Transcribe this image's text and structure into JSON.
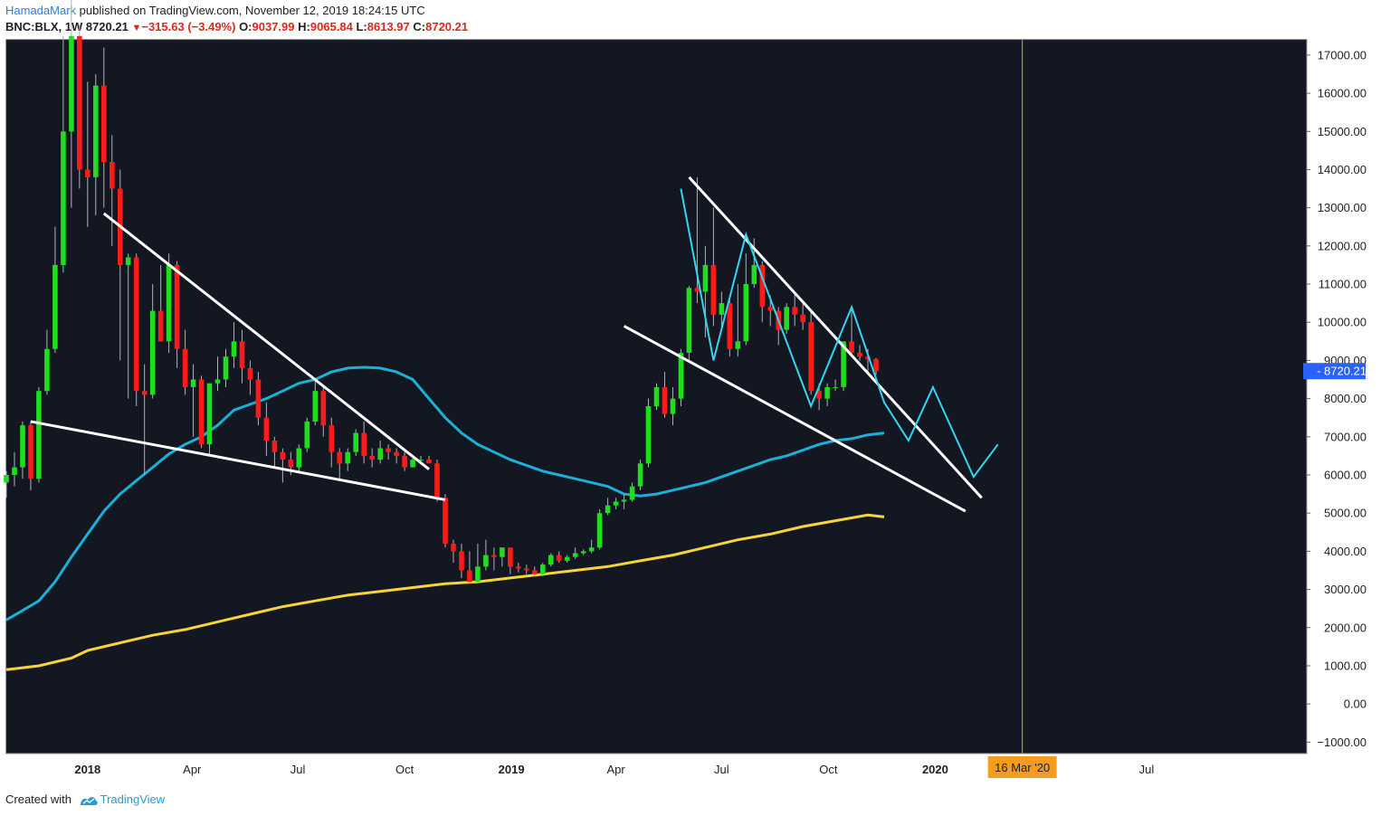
{
  "header": {
    "author": "HamadaMark",
    "published": "published on TradingView.com, November 12, 2019 18:24:15 UTC"
  },
  "ticker": {
    "symbol": "BNC:BLX, 1W",
    "last": "8720.21",
    "change": "−315.63 (−3.49%)",
    "o_label": "O:",
    "o": "9037.99",
    "h_label": "H:",
    "h": "9065.84",
    "l_label": "L:",
    "l": "8613.97",
    "c_label": "C:",
    "c": "8720.21"
  },
  "footer": {
    "created": "Created with",
    "brand": "TradingView"
  },
  "colors": {
    "background": "#131722",
    "up": "#1ede1e",
    "down": "#ff1a1a",
    "ma_fast": "#1ab0d8",
    "ma_slow": "#f7d43a",
    "trendline": "#ffffff",
    "projection": "#33d6f0",
    "vline": "#f59b1e",
    "price_label_bg": "#2962ff"
  },
  "chart_data": {
    "type": "candlestick",
    "timeframe": "1W",
    "ylim": [
      -1300,
      17400
    ],
    "y_ticks": [
      17000,
      16000,
      15000,
      14000,
      13000,
      12000,
      11000,
      10000,
      9000,
      8000,
      7000,
      6000,
      5000,
      4000,
      3000,
      2000,
      1000,
      0,
      -1000
    ],
    "y_tick_labels": [
      "17000.00",
      "16000.00",
      "15000.00",
      "14000.00",
      "13000.00",
      "12000.00",
      "11000.00",
      "10000.00",
      "9000.00",
      "8000.00",
      "7000.00",
      "6000.00",
      "5000.00",
      "4000.00",
      "3000.00",
      "2000.00",
      "1000.00",
      "0.00",
      "−1000.00"
    ],
    "x_axis": {
      "start": "2017-10-23",
      "end": "2020-11-16",
      "ticks": [
        {
          "label": "2018",
          "date": "2018-01-01",
          "bold": true
        },
        {
          "label": "Apr",
          "date": "2018-04-01",
          "bold": false
        },
        {
          "label": "Jul",
          "date": "2018-07-01",
          "bold": false
        },
        {
          "label": "Oct",
          "date": "2018-10-01",
          "bold": false
        },
        {
          "label": "2019",
          "date": "2019-01-01",
          "bold": true
        },
        {
          "label": "Apr",
          "date": "2019-04-01",
          "bold": false
        },
        {
          "label": "Jul",
          "date": "2019-07-01",
          "bold": false
        },
        {
          "label": "Oct",
          "date": "2019-10-01",
          "bold": false
        },
        {
          "label": "2020",
          "date": "2020-01-01",
          "bold": true
        },
        {
          "label": "Jul",
          "date": "2020-07-01",
          "bold": false
        }
      ]
    },
    "candles_first_week": "2017-10-23",
    "candles": [
      [
        5800,
        6100,
        5400,
        6000
      ],
      [
        6000,
        6600,
        5700,
        6200
      ],
      [
        6200,
        7400,
        5900,
        7300
      ],
      [
        7300,
        7400,
        5600,
        5900
      ],
      [
        5900,
        8300,
        5800,
        8200
      ],
      [
        8200,
        9800,
        8100,
        9300
      ],
      [
        9300,
        12500,
        9200,
        11500
      ],
      [
        11500,
        17500,
        11300,
        15000
      ],
      [
        15000,
        19800,
        13000,
        17500
      ],
      [
        17500,
        17800,
        13500,
        14000
      ],
      [
        14000,
        16300,
        12500,
        13800
      ],
      [
        13800,
        16500,
        12800,
        16200
      ],
      [
        16200,
        17200,
        13000,
        14200
      ],
      [
        14200,
        14900,
        12000,
        13500
      ],
      [
        13500,
        14000,
        9000,
        11500
      ],
      [
        11500,
        11800,
        8000,
        11700
      ],
      [
        11700,
        11800,
        7800,
        8200
      ],
      [
        8200,
        8900,
        6000,
        8100
      ],
      [
        8100,
        11000,
        8000,
        10300
      ],
      [
        10300,
        11500,
        9500,
        9500
      ],
      [
        9500,
        11800,
        9200,
        11500
      ],
      [
        11500,
        11600,
        8800,
        9300
      ],
      [
        9300,
        9800,
        8100,
        8300
      ],
      [
        8300,
        8900,
        7000,
        8500
      ],
      [
        8500,
        8600,
        6700,
        6800
      ],
      [
        6800,
        8400,
        6500,
        8400
      ],
      [
        8400,
        9100,
        8200,
        8500
      ],
      [
        8500,
        9300,
        8300,
        9100
      ],
      [
        9100,
        10000,
        8800,
        9500
      ],
      [
        9500,
        9800,
        8400,
        8800
      ],
      [
        8800,
        9000,
        8100,
        8500
      ],
      [
        8500,
        8700,
        7300,
        7500
      ],
      [
        7500,
        7900,
        6500,
        6900
      ],
      [
        6900,
        7000,
        6200,
        6600
      ],
      [
        6600,
        6700,
        5800,
        6400
      ],
      [
        6400,
        6600,
        6000,
        6200
      ],
      [
        6200,
        6800,
        6100,
        6700
      ],
      [
        6700,
        7500,
        6600,
        7400
      ],
      [
        7400,
        8500,
        7300,
        8200
      ],
      [
        8200,
        8300,
        7000,
        7300
      ],
      [
        7300,
        7500,
        6200,
        6600
      ],
      [
        6600,
        6700,
        5900,
        6300
      ],
      [
        6300,
        6700,
        6100,
        6600
      ],
      [
        6600,
        7200,
        6500,
        7100
      ],
      [
        7100,
        7400,
        6300,
        6500
      ],
      [
        6500,
        6700,
        6200,
        6400
      ],
      [
        6400,
        6900,
        6300,
        6700
      ],
      [
        6700,
        6800,
        6400,
        6600
      ],
      [
        6600,
        6700,
        6300,
        6500
      ],
      [
        6500,
        6600,
        6100,
        6200
      ],
      [
        6200,
        6500,
        6200,
        6400
      ],
      [
        6400,
        6500,
        6300,
        6400
      ],
      [
        6400,
        6500,
        6300,
        6300
      ],
      [
        6300,
        6400,
        5300,
        5400
      ],
      [
        5400,
        5500,
        4100,
        4200
      ],
      [
        4200,
        4300,
        3700,
        4000
      ],
      [
        4000,
        4200,
        3300,
        3500
      ],
      [
        3500,
        4000,
        3200,
        3200
      ],
      [
        3200,
        4200,
        3200,
        3600
      ],
      [
        3600,
        4300,
        3500,
        3900
      ],
      [
        3900,
        4100,
        3500,
        3850
      ],
      [
        3850,
        4100,
        3600,
        4100
      ],
      [
        4100,
        4100,
        3400,
        3600
      ],
      [
        3600,
        3700,
        3450,
        3550
      ],
      [
        3550,
        3650,
        3400,
        3500
      ],
      [
        3500,
        3600,
        3350,
        3400
      ],
      [
        3400,
        3700,
        3350,
        3650
      ],
      [
        3650,
        3950,
        3600,
        3900
      ],
      [
        3900,
        4000,
        3700,
        3750
      ],
      [
        3750,
        3900,
        3700,
        3850
      ],
      [
        3850,
        4100,
        3800,
        3950
      ],
      [
        3950,
        4050,
        3900,
        4000
      ],
      [
        4000,
        4300,
        3950,
        4100
      ],
      [
        4100,
        5100,
        4050,
        5000
      ],
      [
        5000,
        5400,
        4950,
        5200
      ],
      [
        5200,
        5400,
        5100,
        5300
      ],
      [
        5300,
        5500,
        5100,
        5350
      ],
      [
        5350,
        5800,
        5300,
        5700
      ],
      [
        5700,
        6400,
        5600,
        6300
      ],
      [
        6300,
        8000,
        6200,
        7800
      ],
      [
        7800,
        8400,
        7700,
        8300
      ],
      [
        8300,
        8700,
        7500,
        7600
      ],
      [
        7600,
        8300,
        7300,
        8000
      ],
      [
        8000,
        9300,
        7800,
        9200
      ],
      [
        9200,
        10950,
        9000,
        10900
      ],
      [
        10900,
        13800,
        10500,
        10800
      ],
      [
        10800,
        12000,
        9600,
        11500
      ],
      [
        11500,
        13000,
        9900,
        10200
      ],
      [
        10200,
        10800,
        9800,
        10500
      ],
      [
        10500,
        10700,
        9100,
        9300
      ],
      [
        9300,
        11000,
        9100,
        9500
      ],
      [
        9500,
        11800,
        9400,
        11000
      ],
      [
        11000,
        12200,
        10900,
        11500
      ],
      [
        11500,
        11600,
        10000,
        10400
      ],
      [
        10400,
        10700,
        9900,
        10300
      ],
      [
        10300,
        10400,
        9400,
        9800
      ],
      [
        9800,
        10500,
        9700,
        10400
      ],
      [
        10400,
        10800,
        9900,
        10200
      ],
      [
        10200,
        10500,
        9800,
        10000
      ],
      [
        10000,
        10300,
        8100,
        8200
      ],
      [
        8200,
        8400,
        7700,
        8000
      ],
      [
        8000,
        8400,
        7800,
        8300
      ],
      [
        8300,
        8500,
        8200,
        8300
      ],
      [
        8300,
        9400,
        8200,
        9500
      ],
      [
        9500,
        10400,
        9100,
        9200
      ],
      [
        9200,
        9400,
        9000,
        9100
      ],
      [
        9100,
        9300,
        8700,
        9037
      ],
      [
        9037.99,
        9065.84,
        8613.97,
        8720.21
      ]
    ],
    "ma_fast": [
      [
        0,
        2200
      ],
      [
        2,
        2450
      ],
      [
        4,
        2700
      ],
      [
        6,
        3200
      ],
      [
        8,
        3850
      ],
      [
        10,
        4450
      ],
      [
        12,
        5050
      ],
      [
        14,
        5500
      ],
      [
        16,
        5850
      ],
      [
        18,
        6200
      ],
      [
        20,
        6550
      ],
      [
        22,
        6800
      ],
      [
        24,
        7000
      ],
      [
        26,
        7300
      ],
      [
        28,
        7700
      ],
      [
        30,
        7850
      ],
      [
        32,
        8000
      ],
      [
        34,
        8200
      ],
      [
        36,
        8400
      ],
      [
        38,
        8500
      ],
      [
        40,
        8700
      ],
      [
        42,
        8800
      ],
      [
        44,
        8820
      ],
      [
        46,
        8800
      ],
      [
        48,
        8700
      ],
      [
        50,
        8500
      ],
      [
        52,
        8000
      ],
      [
        54,
        7500
      ],
      [
        56,
        7100
      ],
      [
        58,
        6800
      ],
      [
        60,
        6600
      ],
      [
        62,
        6400
      ],
      [
        64,
        6250
      ],
      [
        66,
        6100
      ],
      [
        68,
        6000
      ],
      [
        70,
        5900
      ],
      [
        72,
        5800
      ],
      [
        74,
        5700
      ],
      [
        76,
        5500
      ],
      [
        78,
        5450
      ],
      [
        80,
        5500
      ],
      [
        82,
        5600
      ],
      [
        84,
        5700
      ],
      [
        86,
        5800
      ],
      [
        88,
        5950
      ],
      [
        90,
        6100
      ],
      [
        92,
        6250
      ],
      [
        94,
        6400
      ],
      [
        96,
        6500
      ],
      [
        98,
        6650
      ],
      [
        100,
        6800
      ],
      [
        102,
        6900
      ],
      [
        104,
        6950
      ],
      [
        106,
        7050
      ],
      [
        108,
        7100
      ]
    ],
    "ma_slow": [
      [
        0,
        900
      ],
      [
        4,
        1000
      ],
      [
        8,
        1200
      ],
      [
        10,
        1400
      ],
      [
        14,
        1600
      ],
      [
        18,
        1800
      ],
      [
        22,
        1950
      ],
      [
        26,
        2150
      ],
      [
        30,
        2350
      ],
      [
        34,
        2550
      ],
      [
        38,
        2700
      ],
      [
        42,
        2850
      ],
      [
        46,
        2950
      ],
      [
        50,
        3050
      ],
      [
        54,
        3150
      ],
      [
        58,
        3200
      ],
      [
        62,
        3300
      ],
      [
        66,
        3400
      ],
      [
        70,
        3500
      ],
      [
        74,
        3600
      ],
      [
        78,
        3750
      ],
      [
        82,
        3900
      ],
      [
        86,
        4100
      ],
      [
        90,
        4300
      ],
      [
        94,
        4450
      ],
      [
        98,
        4650
      ],
      [
        102,
        4800
      ],
      [
        106,
        4950
      ],
      [
        108,
        4900
      ]
    ],
    "trendlines": [
      {
        "from": [
          3,
          7400
        ],
        "to": [
          54,
          5350
        ]
      },
      {
        "from": [
          12,
          12850
        ],
        "to": [
          52,
          6150
        ]
      },
      {
        "from": [
          76,
          9900
        ],
        "to": [
          118,
          5050
        ]
      },
      {
        "from": [
          84,
          13800
        ],
        "to": [
          120,
          5400
        ]
      }
    ],
    "projection_path": [
      [
        83,
        13500
      ],
      [
        87,
        9000
      ],
      [
        91,
        12300
      ],
      [
        99,
        7800
      ],
      [
        104,
        10400
      ],
      [
        108,
        7900
      ],
      [
        111,
        6900
      ],
      [
        114,
        8300
      ],
      [
        119,
        5950
      ],
      [
        122,
        6800
      ]
    ],
    "vline_date": "2020-03-16",
    "vline_label": "16 Mar '20",
    "last_price": 8720.21,
    "last_price_label": "8720.21"
  }
}
